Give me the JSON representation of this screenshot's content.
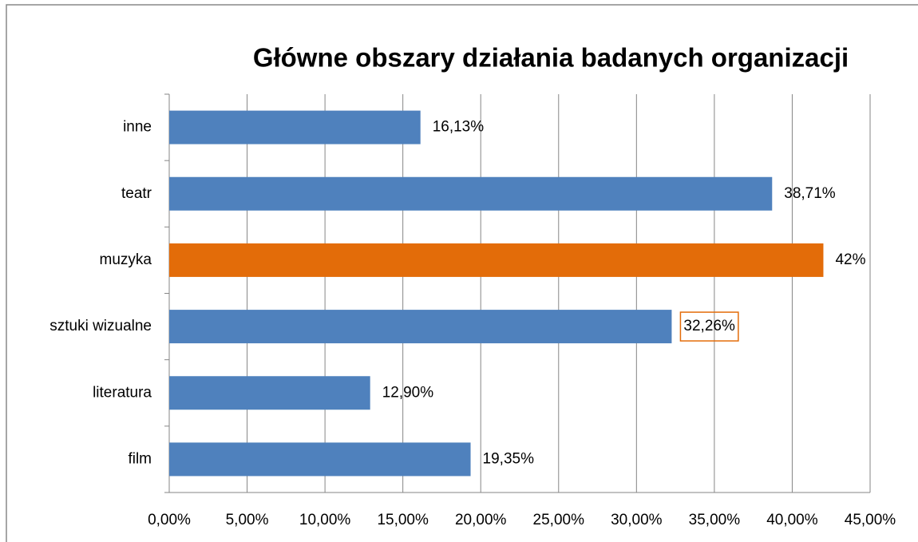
{
  "chart_data": {
    "type": "hbar",
    "title": "Główne obszary działania badanych organizacji",
    "categories": [
      "inne",
      "teatr",
      "muzyka",
      "sztuki wizualne",
      "literatura",
      "film"
    ],
    "values": [
      16.13,
      38.71,
      42,
      32.26,
      12.9,
      19.35
    ],
    "value_labels": [
      "16,13%",
      "38,71%",
      "42%",
      "32,26%",
      "12,90%",
      "19,35%"
    ],
    "colors": [
      "#4f81bd",
      "#4f81bd",
      "#e36c09",
      "#4f81bd",
      "#4f81bd",
      "#4f81bd"
    ],
    "value_label_borders": [
      null,
      null,
      null,
      "#e36c09",
      null,
      null
    ],
    "xlim": [
      0,
      45
    ],
    "xticks": [
      {
        "value": 0,
        "label": "0,00%"
      },
      {
        "value": 5,
        "label": "5,00%"
      },
      {
        "value": 10,
        "label": "10,00%"
      },
      {
        "value": 15,
        "label": "15,00%"
      },
      {
        "value": 20,
        "label": "20,00%"
      },
      {
        "value": 25,
        "label": "25,00%"
      },
      {
        "value": 30,
        "label": "30,00%"
      },
      {
        "value": 35,
        "label": "35,00%"
      },
      {
        "value": 40,
        "label": "40,00%"
      },
      {
        "value": 45,
        "label": "45,00%"
      }
    ],
    "grid": true
  }
}
